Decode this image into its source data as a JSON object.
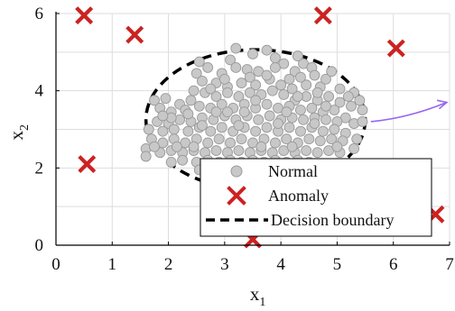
{
  "chart_data": {
    "type": "scatter",
    "title": "",
    "xlabel": "x",
    "xlabel_subscript": "1",
    "ylabel": "x",
    "ylabel_subscript": "2",
    "xlim": [
      0,
      7
    ],
    "ylim": [
      0,
      6
    ],
    "x_ticks": [
      0,
      1,
      2,
      3,
      4,
      5,
      6,
      7
    ],
    "y_ticks": [
      0,
      2,
      4,
      6
    ],
    "x_tick_labels": [
      "0",
      "1",
      "2",
      "3",
      "4",
      "5",
      "6",
      "7"
    ],
    "y_tick_labels": [
      "0",
      "2",
      "4",
      "6"
    ],
    "grid": true,
    "legend_position": "bottom-right",
    "colors": {
      "normal_fill": "#c8c8c8",
      "normal_stroke": "#9a9a9a",
      "anomaly": "#cc2222",
      "boundary": "#000000",
      "arrow": "#9966ee",
      "grid": "#dddddd",
      "axes": "#000000"
    },
    "series": [
      {
        "name": "Normal",
        "marker": "circle",
        "points": [
          [
            3.2,
            5.1
          ],
          [
            3.75,
            5.05
          ],
          [
            3.1,
            4.8
          ],
          [
            3.5,
            4.95
          ],
          [
            3.9,
            4.85
          ],
          [
            4.05,
            4.7
          ],
          [
            4.3,
            4.9
          ],
          [
            4.4,
            4.7
          ],
          [
            4.55,
            4.6
          ],
          [
            4.6,
            4.4
          ],
          [
            4.25,
            4.5
          ],
          [
            4.15,
            4.3
          ],
          [
            3.9,
            4.6
          ],
          [
            3.6,
            4.5
          ],
          [
            3.4,
            4.55
          ],
          [
            3.2,
            4.6
          ],
          [
            2.95,
            4.45
          ],
          [
            2.7,
            4.6
          ],
          [
            2.55,
            4.75
          ],
          [
            2.5,
            4.45
          ],
          [
            2.6,
            4.25
          ],
          [
            2.85,
            4.2
          ],
          [
            3.05,
            4.1
          ],
          [
            3.3,
            4.2
          ],
          [
            3.55,
            4.15
          ],
          [
            3.8,
            4.3
          ],
          [
            4.0,
            4.15
          ],
          [
            4.2,
            4.05
          ],
          [
            4.45,
            4.15
          ],
          [
            4.7,
            4.1
          ],
          [
            4.8,
            4.3
          ],
          [
            5.05,
            4.05
          ],
          [
            5.3,
            3.95
          ],
          [
            5.4,
            3.75
          ],
          [
            5.45,
            3.5
          ],
          [
            5.25,
            3.6
          ],
          [
            5.05,
            3.7
          ],
          [
            4.85,
            3.85
          ],
          [
            4.65,
            3.75
          ],
          [
            4.45,
            3.85
          ],
          [
            4.25,
            3.75
          ],
          [
            4.05,
            3.9
          ],
          [
            3.85,
            4.0
          ],
          [
            3.65,
            3.9
          ],
          [
            3.45,
            3.95
          ],
          [
            3.25,
            3.85
          ],
          [
            3.05,
            3.95
          ],
          [
            2.85,
            3.85
          ],
          [
            2.65,
            3.95
          ],
          [
            2.4,
            3.75
          ],
          [
            2.2,
            3.65
          ],
          [
            1.95,
            3.8
          ],
          [
            1.75,
            3.75
          ],
          [
            1.85,
            3.55
          ],
          [
            2.05,
            3.45
          ],
          [
            2.3,
            3.5
          ],
          [
            2.55,
            3.6
          ],
          [
            2.75,
            3.55
          ],
          [
            2.95,
            3.65
          ],
          [
            3.15,
            3.55
          ],
          [
            3.35,
            3.65
          ],
          [
            3.55,
            3.55
          ],
          [
            3.75,
            3.65
          ],
          [
            3.95,
            3.55
          ],
          [
            4.15,
            3.6
          ],
          [
            4.35,
            3.5
          ],
          [
            4.55,
            3.55
          ],
          [
            4.75,
            3.45
          ],
          [
            4.95,
            3.5
          ],
          [
            5.15,
            3.3
          ],
          [
            5.3,
            3.15
          ],
          [
            5.0,
            3.2
          ],
          [
            4.8,
            3.25
          ],
          [
            4.6,
            3.3
          ],
          [
            4.4,
            3.25
          ],
          [
            4.2,
            3.3
          ],
          [
            4.0,
            3.25
          ],
          [
            3.8,
            3.35
          ],
          [
            3.6,
            3.25
          ],
          [
            3.4,
            3.35
          ],
          [
            3.2,
            3.25
          ],
          [
            3.0,
            3.35
          ],
          [
            2.8,
            3.25
          ],
          [
            2.6,
            3.3
          ],
          [
            2.4,
            3.2
          ],
          [
            2.2,
            3.25
          ],
          [
            2.0,
            3.15
          ],
          [
            1.8,
            3.2
          ],
          [
            1.65,
            3.0
          ],
          [
            1.9,
            2.95
          ],
          [
            2.1,
            3.0
          ],
          [
            2.35,
            2.95
          ],
          [
            2.55,
            3.05
          ],
          [
            2.75,
            2.95
          ],
          [
            2.95,
            3.05
          ],
          [
            3.15,
            2.95
          ],
          [
            3.35,
            3.05
          ],
          [
            3.55,
            2.95
          ],
          [
            3.75,
            3.05
          ],
          [
            3.95,
            2.95
          ],
          [
            4.15,
            3.05
          ],
          [
            4.35,
            2.95
          ],
          [
            4.55,
            3.05
          ],
          [
            4.75,
            2.95
          ],
          [
            4.95,
            3.0
          ],
          [
            5.15,
            2.9
          ],
          [
            5.35,
            2.75
          ],
          [
            5.1,
            2.7
          ],
          [
            4.9,
            2.75
          ],
          [
            4.7,
            2.7
          ],
          [
            4.5,
            2.75
          ],
          [
            4.3,
            2.65
          ],
          [
            4.1,
            2.75
          ],
          [
            3.9,
            2.65
          ],
          [
            3.7,
            2.75
          ],
          [
            3.5,
            2.65
          ],
          [
            3.3,
            2.75
          ],
          [
            3.1,
            2.65
          ],
          [
            2.9,
            2.75
          ],
          [
            2.7,
            2.65
          ],
          [
            2.5,
            2.75
          ],
          [
            2.3,
            2.65
          ],
          [
            2.1,
            2.75
          ],
          [
            1.9,
            2.65
          ],
          [
            1.7,
            2.75
          ],
          [
            1.6,
            2.5
          ],
          [
            1.6,
            2.3
          ],
          [
            1.85,
            2.4
          ],
          [
            2.05,
            2.45
          ],
          [
            2.25,
            2.4
          ],
          [
            2.45,
            2.45
          ],
          [
            2.65,
            2.4
          ],
          [
            2.85,
            2.45
          ],
          [
            3.05,
            2.4
          ],
          [
            3.25,
            2.45
          ],
          [
            3.45,
            2.4
          ],
          [
            3.65,
            2.45
          ],
          [
            3.85,
            2.4
          ],
          [
            4.05,
            2.45
          ],
          [
            4.25,
            2.4
          ],
          [
            4.45,
            2.45
          ],
          [
            4.65,
            2.4
          ],
          [
            4.85,
            2.45
          ],
          [
            5.05,
            2.4
          ],
          [
            5.3,
            2.5
          ],
          [
            2.05,
            2.15
          ],
          [
            2.25,
            2.2
          ],
          [
            2.5,
            2.15
          ],
          [
            2.7,
            2.2
          ],
          [
            2.9,
            2.15
          ],
          [
            3.1,
            2.2
          ],
          [
            3.3,
            2.15
          ],
          [
            3.5,
            2.2
          ],
          [
            3.7,
            2.15
          ],
          [
            3.9,
            2.2
          ],
          [
            4.1,
            2.15
          ],
          [
            4.3,
            2.2
          ],
          [
            4.5,
            2.15
          ],
          [
            2.55,
            1.95
          ],
          [
            2.8,
            1.9
          ],
          [
            3.0,
            1.95
          ],
          [
            3.25,
            1.9
          ],
          [
            3.45,
            1.95
          ],
          [
            3.65,
            1.9
          ],
          [
            3.9,
            1.95
          ],
          [
            2.9,
            1.75
          ],
          [
            3.15,
            1.7
          ],
          [
            3.35,
            1.75
          ],
          [
            3.6,
            1.7
          ],
          [
            3.25,
            1.55
          ],
          [
            3.0,
            4.3
          ],
          [
            3.45,
            4.35
          ],
          [
            3.75,
            4.4
          ],
          [
            4.35,
            4.35
          ],
          [
            2.75,
            4.05
          ],
          [
            4.9,
            4.5
          ],
          [
            4.65,
            3.95
          ],
          [
            5.2,
            3.85
          ],
          [
            2.45,
            4.0
          ],
          [
            2.05,
            3.3
          ],
          [
            1.9,
            3.35
          ],
          [
            5.45,
            3.2
          ],
          [
            5.0,
            2.55
          ],
          [
            1.75,
            2.55
          ],
          [
            2.15,
            2.55
          ],
          [
            3.55,
            3.75
          ],
          [
            3.35,
            3.45
          ],
          [
            3.05,
            3.45
          ],
          [
            2.85,
            3.45
          ],
          [
            4.1,
            3.45
          ],
          [
            4.3,
            3.85
          ],
          [
            4.6,
            3.15
          ],
          [
            3.95,
            3.15
          ],
          [
            3.25,
            3.1
          ],
          [
            2.6,
            3.1
          ],
          [
            2.35,
            3.4
          ],
          [
            2.45,
            2.55
          ],
          [
            3.65,
            2.55
          ],
          [
            4.2,
            2.55
          ],
          [
            4.8,
            3.6
          ]
        ]
      },
      {
        "name": "Anomaly",
        "marker": "x",
        "points": [
          [
            0.5,
            5.95
          ],
          [
            1.4,
            5.45
          ],
          [
            4.75,
            5.95
          ],
          [
            6.05,
            5.1
          ],
          [
            0.55,
            2.1
          ],
          [
            3.5,
            0.15
          ],
          [
            6.75,
            0.8
          ]
        ]
      },
      {
        "name": "Decision boundary",
        "marker": "dashed-ellipse",
        "center": [
          3.55,
          3.25
        ],
        "radius_x": 1.95,
        "radius_y": 1.95
      }
    ],
    "legend": [
      {
        "label": "Normal",
        "marker": "circle"
      },
      {
        "label": "Anomaly",
        "marker": "x"
      },
      {
        "label": "Decision boundary",
        "marker": "dashed-line"
      }
    ],
    "annotation": {
      "type": "arrow",
      "from": [
        5.6,
        3.2
      ],
      "to": [
        6.95,
        3.7
      ]
    }
  }
}
